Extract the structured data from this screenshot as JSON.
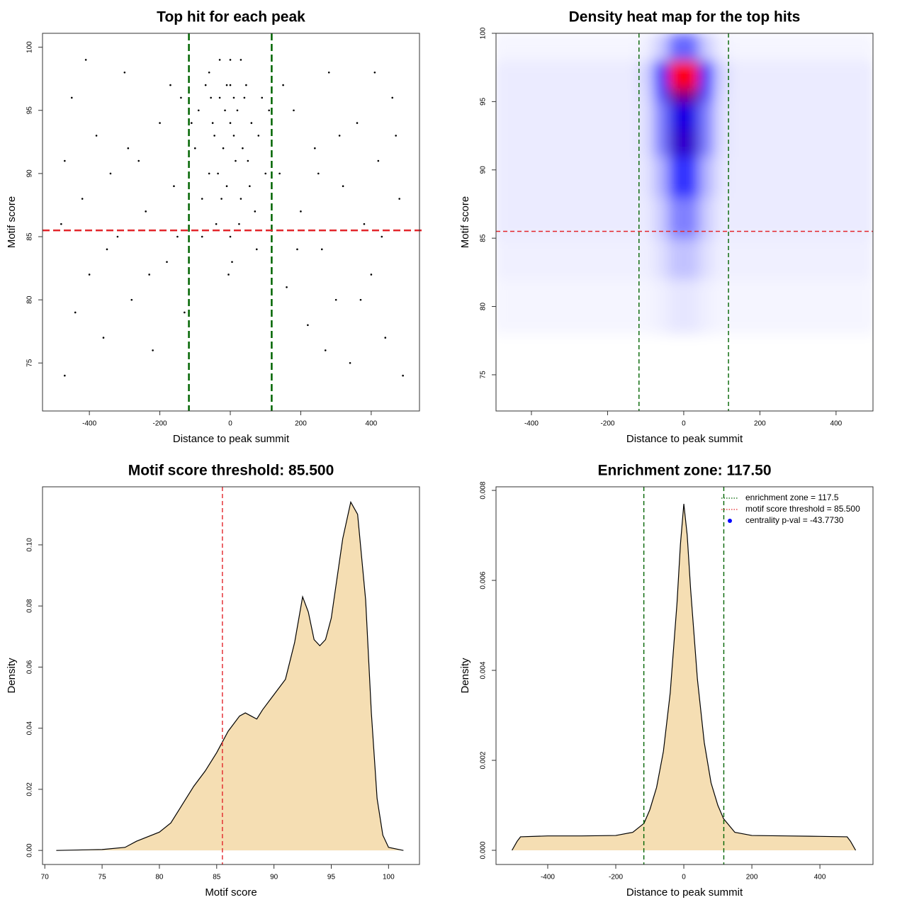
{
  "chart_data": [
    {
      "type": "scatter",
      "title": "Top hit for each peak",
      "xlabel": "Distance to peak summit",
      "ylabel": "Motif score",
      "xlim": [
        -533,
        537
      ],
      "ylim": [
        71.2,
        101.1
      ],
      "xticks": [
        -400,
        -200,
        0,
        200,
        400
      ],
      "yticks": [
        75,
        80,
        85,
        90,
        95,
        100
      ],
      "color": "#000000",
      "x": [
        -470,
        -450,
        -420,
        -400,
        -380,
        -360,
        -340,
        -320,
        -300,
        -280,
        -260,
        -240,
        -220,
        -200,
        -180,
        -160,
        -140,
        -130,
        -480,
        -470,
        -440,
        -410,
        -350,
        -290,
        -230,
        -170,
        -150,
        140,
        160,
        180,
        200,
        220,
        240,
        260,
        280,
        300,
        320,
        340,
        360,
        380,
        400,
        420,
        440,
        460,
        480,
        150,
        190,
        250,
        310,
        370,
        430,
        490,
        470,
        410,
        270,
        -100,
        -90,
        -80,
        -70,
        -60,
        -50,
        -40,
        -30,
        -20,
        -10,
        0,
        10,
        20,
        30,
        40,
        50,
        60,
        70,
        80,
        90,
        100,
        -60,
        -30,
        0,
        30,
        -45,
        -15,
        15,
        45,
        -25,
        25,
        0,
        5,
        -5,
        -80,
        75,
        -110,
        110,
        0,
        -10,
        10,
        -35,
        35,
        -55,
        55
      ],
      "y": [
        74,
        96,
        88,
        82,
        93,
        77,
        90,
        85,
        98,
        80,
        91,
        87,
        76,
        94,
        83,
        89,
        96,
        79,
        86,
        91,
        79,
        99,
        84,
        92,
        82,
        97,
        85,
        90,
        81,
        95,
        87,
        78,
        92,
        84,
        98,
        80,
        89,
        75,
        94,
        86,
        82,
        91,
        77,
        96,
        88,
        97,
        84,
        90,
        93,
        80,
        85,
        74,
        93,
        98,
        76,
        92,
        95,
        88,
        97,
        90,
        94,
        86,
        96,
        92,
        89,
        97,
        93,
        95,
        88,
        96,
        91,
        94,
        87,
        93,
        96,
        90,
        98,
        99,
        99,
        99,
        93,
        95,
        91,
        97,
        88,
        86,
        85,
        83,
        82,
        85,
        84,
        94,
        95,
        94,
        97,
        96,
        90,
        92,
        96,
        89
      ],
      "vlines": [
        {
          "value": -117.5,
          "color": "#006400"
        },
        {
          "value": 117.5,
          "color": "#006400"
        }
      ],
      "hlines": [
        {
          "value": 85.5,
          "color": "#e3262b"
        }
      ]
    },
    {
      "type": "heatmap",
      "title": "Density heat map for the top hits",
      "xlabel": "Distance to peak summit",
      "ylabel": "Motif score",
      "xlim": [
        -493,
        497
      ],
      "ylim": [
        72.35,
        100
      ],
      "xticks": [
        -400,
        -200,
        0,
        200,
        400
      ],
      "yticks": [
        75,
        80,
        85,
        90,
        95,
        100
      ],
      "x_edges": [
        -500,
        -120,
        -80,
        -40,
        0,
        40,
        80,
        120,
        500
      ],
      "y_edges": [
        72,
        78,
        82,
        85,
        88,
        91,
        93,
        95,
        96,
        98,
        100
      ],
      "z": [
        [
          0,
          0,
          0,
          0,
          0,
          0,
          0,
          0
        ],
        [
          0.02,
          0.02,
          0.03,
          0.05,
          0.05,
          0.03,
          0.02,
          0.02
        ],
        [
          0.03,
          0.03,
          0.06,
          0.12,
          0.12,
          0.06,
          0.03,
          0.03
        ],
        [
          0.04,
          0.04,
          0.1,
          0.25,
          0.25,
          0.1,
          0.04,
          0.04
        ],
        [
          0.04,
          0.05,
          0.15,
          0.4,
          0.4,
          0.15,
          0.05,
          0.04
        ],
        [
          0.04,
          0.06,
          0.25,
          0.6,
          0.6,
          0.25,
          0.06,
          0.04
        ],
        [
          0.04,
          0.06,
          0.25,
          0.55,
          0.55,
          0.25,
          0.06,
          0.04
        ],
        [
          0.04,
          0.07,
          0.35,
          0.75,
          0.75,
          0.35,
          0.07,
          0.04
        ],
        [
          0.04,
          0.08,
          0.4,
          1,
          1,
          0.4,
          0.08,
          0.04
        ],
        [
          0.02,
          0.03,
          0.1,
          0.3,
          0.3,
          0.1,
          0.03,
          0.02
        ]
      ],
      "colors": [
        "#ffffff",
        "#0000ff",
        "#ff0000"
      ],
      "vlines": [
        {
          "value": -117.5,
          "color": "#006400"
        },
        {
          "value": 117.5,
          "color": "#006400"
        }
      ],
      "hlines": [
        {
          "value": 85.5,
          "color": "#e3262b"
        }
      ]
    },
    {
      "type": "area",
      "title": "Motif score threshold: 85.500",
      "xlabel": "Motif score",
      "ylabel": "Density",
      "xlim": [
        69.8,
        102.7
      ],
      "ylim": [
        -0.0046,
        0.119
      ],
      "xticks": [
        70,
        75,
        80,
        85,
        90,
        95,
        100
      ],
      "yticks": [
        {
          "value": 0,
          "label": "0.00"
        },
        {
          "value": 0.02,
          "label": "0.02"
        },
        {
          "value": 0.04,
          "label": "0.04"
        },
        {
          "value": 0.06,
          "label": "0.06"
        },
        {
          "value": 0.08,
          "label": "0.08"
        },
        {
          "value": 0.1,
          "label": "0.10"
        }
      ],
      "color": "#f5deb3",
      "x": [
        71,
        75,
        77,
        78,
        80,
        81,
        82,
        83,
        84,
        85,
        86,
        87,
        87.5,
        88,
        88.5,
        89,
        90,
        91,
        91.8,
        92.5,
        93,
        93.5,
        94,
        94.5,
        95,
        96,
        96.7,
        97.3,
        98,
        98.5,
        99,
        99.5,
        100,
        101.3
      ],
      "values": [
        0,
        0.0003,
        0.001,
        0.003,
        0.006,
        0.009,
        0.015,
        0.021,
        0.026,
        0.032,
        0.039,
        0.044,
        0.045,
        0.044,
        0.043,
        0.046,
        0.051,
        0.056,
        0.068,
        0.083,
        0.078,
        0.069,
        0.067,
        0.069,
        0.076,
        0.102,
        0.114,
        0.11,
        0.082,
        0.045,
        0.017,
        0.005,
        0.001,
        0
      ],
      "vlines": [
        {
          "value": 85.5,
          "color": "#e3262b"
        }
      ]
    },
    {
      "type": "area",
      "title": "Enrichment zone: 117.50",
      "xlabel": "Distance to peak summit",
      "ylabel": "Density",
      "xlim": [
        -552,
        556
      ],
      "ylim": [
        -0.000315,
        0.00808
      ],
      "xticks": [
        -400,
        -200,
        0,
        200,
        400
      ],
      "yticks": [
        {
          "value": 0,
          "label": "0.000"
        },
        {
          "value": 0.002,
          "label": "0.002"
        },
        {
          "value": 0.004,
          "label": "0.004"
        },
        {
          "value": 0.006,
          "label": "0.006"
        },
        {
          "value": 0.008,
          "label": "0.008"
        }
      ],
      "color": "#f5deb3",
      "x": [
        -505,
        -490,
        -480,
        -400,
        -300,
        -200,
        -150,
        -117,
        -100,
        -80,
        -60,
        -40,
        -20,
        -10,
        0,
        10,
        20,
        40,
        60,
        80,
        100,
        117,
        150,
        200,
        300,
        400,
        480,
        490,
        505
      ],
      "values": [
        0,
        0.0002,
        0.0003,
        0.00032,
        0.00032,
        0.00033,
        0.0004,
        0.0006,
        0.0009,
        0.0014,
        0.0022,
        0.0035,
        0.0055,
        0.0068,
        0.0077,
        0.007,
        0.0058,
        0.0038,
        0.0024,
        0.0015,
        0.001,
        0.0007,
        0.0004,
        0.00033,
        0.00032,
        0.00031,
        0.0003,
        0.0002,
        0
      ],
      "vlines": [
        {
          "value": -117.5,
          "color": "#006400"
        },
        {
          "value": 117.5,
          "color": "#006400"
        }
      ],
      "legend": [
        {
          "label": "enrichment zone = 117.5",
          "color": "#006400",
          "style": "dotted"
        },
        {
          "label": "motif score threshold = 85.500",
          "color": "#e3262b",
          "style": "dotted"
        },
        {
          "label": "centrality p-val = -43.7730",
          "color": "#0000ff",
          "style": "point"
        }
      ]
    }
  ]
}
